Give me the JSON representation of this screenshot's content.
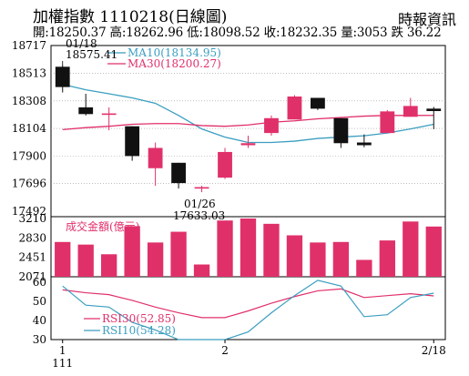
{
  "header": {
    "title": "加權指數 1110218(日線圖)",
    "source": "時報資訊",
    "ohlc_line": "開:18250.37 高:18262.96 低:18098.52 收:18232.35 量:3053 跌 36.22"
  },
  "colors": {
    "up": "#e0306a",
    "down": "#111111",
    "ma10": "#3b9ec0",
    "ma30": "#e0306a",
    "volume": "#e0306a",
    "rsi30": "#e0306a",
    "rsi10": "#3b9ec0",
    "grid": "#999999"
  },
  "chart_data": [
    {
      "type": "candlestick",
      "yticks": [
        "18717",
        "18513",
        "18308",
        "18104",
        "17900",
        "17696",
        "17492"
      ],
      "ylim": [
        17492,
        18717
      ],
      "grid": true,
      "legend": [
        "MA10(18134.95)",
        "MA30(18200.27)"
      ],
      "annotations": [
        {
          "date_label": "01/18",
          "value_label": "18575.41"
        },
        {
          "date_label": "01/26",
          "value_label": "17633.03"
        }
      ],
      "candles": [
        {
          "open": 18560,
          "high": 18575.41,
          "low": 18370,
          "close": 18410
        },
        {
          "open": 18260,
          "high": 18360,
          "low": 18200,
          "close": 18210
        },
        {
          "open": 18215,
          "high": 18260,
          "low": 18090,
          "close": 18215
        },
        {
          "open": 18120,
          "high": 18120,
          "low": 17865,
          "close": 17900
        },
        {
          "open": 17810,
          "high": 18000,
          "low": 17680,
          "close": 17960
        },
        {
          "open": 17850,
          "high": 17850,
          "low": 17660,
          "close": 17700
        },
        {
          "open": 17660,
          "high": 17680,
          "low": 17633.03,
          "close": 17670
        },
        {
          "open": 17740,
          "high": 17960,
          "low": 17730,
          "close": 17930
        },
        {
          "open": 17980,
          "high": 18050,
          "low": 17960,
          "close": 17995
        },
        {
          "open": 18070,
          "high": 18200,
          "low": 18050,
          "close": 18180
        },
        {
          "open": 18170,
          "high": 18350,
          "low": 18170,
          "close": 18340
        },
        {
          "open": 18330,
          "high": 18330,
          "low": 18240,
          "close": 18250
        },
        {
          "open": 18180,
          "high": 18180,
          "low": 17960,
          "close": 17995
        },
        {
          "open": 18000,
          "high": 18060,
          "low": 17965,
          "close": 17980
        },
        {
          "open": 18070,
          "high": 18240,
          "low": 18070,
          "close": 18230
        },
        {
          "open": 18190,
          "high": 18330,
          "low": 18190,
          "close": 18270
        },
        {
          "open": 18250.37,
          "high": 18262.96,
          "low": 18098.52,
          "close": 18232.35
        }
      ],
      "series": [
        {
          "name": "MA10(18134.95)",
          "values": [
            18430,
            18390,
            18360,
            18330,
            18290,
            18200,
            18100,
            18040,
            18000,
            18000,
            18010,
            18030,
            18040,
            18050,
            18070,
            18100,
            18134.95
          ]
        },
        {
          "name": "MA30(18200.27)",
          "values": [
            18095,
            18110,
            18120,
            18135,
            18140,
            18140,
            18125,
            18120,
            18130,
            18150,
            18160,
            18175,
            18185,
            18195,
            18200,
            18200,
            18200.27
          ]
        }
      ]
    },
    {
      "type": "bar",
      "title": "成交金額(億元)",
      "yticks": [
        "3210",
        "2830",
        "2451",
        "2071"
      ],
      "ylim": [
        2071,
        3210
      ],
      "values": [
        2751,
        2700,
        2511,
        3061,
        2741,
        2951,
        2311,
        3171,
        3210,
        3106,
        2881,
        2741,
        2751,
        2401,
        2781,
        3151,
        3053
      ]
    },
    {
      "type": "line",
      "yticks": [
        "60",
        "50",
        "40",
        "30"
      ],
      "ylim": [
        30,
        60
      ],
      "series": [
        {
          "name": "RSI30(52.85)",
          "values": [
            56,
            54.5,
            53.5,
            50.5,
            47,
            44,
            41.5,
            41.5,
            45,
            49,
            52.5,
            55.5,
            56.5,
            52,
            53,
            54,
            52.85
          ]
        },
        {
          "name": "RSI10(54.28)",
          "values": [
            58,
            48,
            47,
            39,
            35,
            28,
            25,
            26,
            34,
            44,
            53,
            61,
            58,
            42,
            43,
            52,
            54.28
          ]
        }
      ]
    }
  ],
  "xaxis": {
    "ticks": [
      "1",
      "2",
      "2/18"
    ],
    "year_label": "111"
  }
}
